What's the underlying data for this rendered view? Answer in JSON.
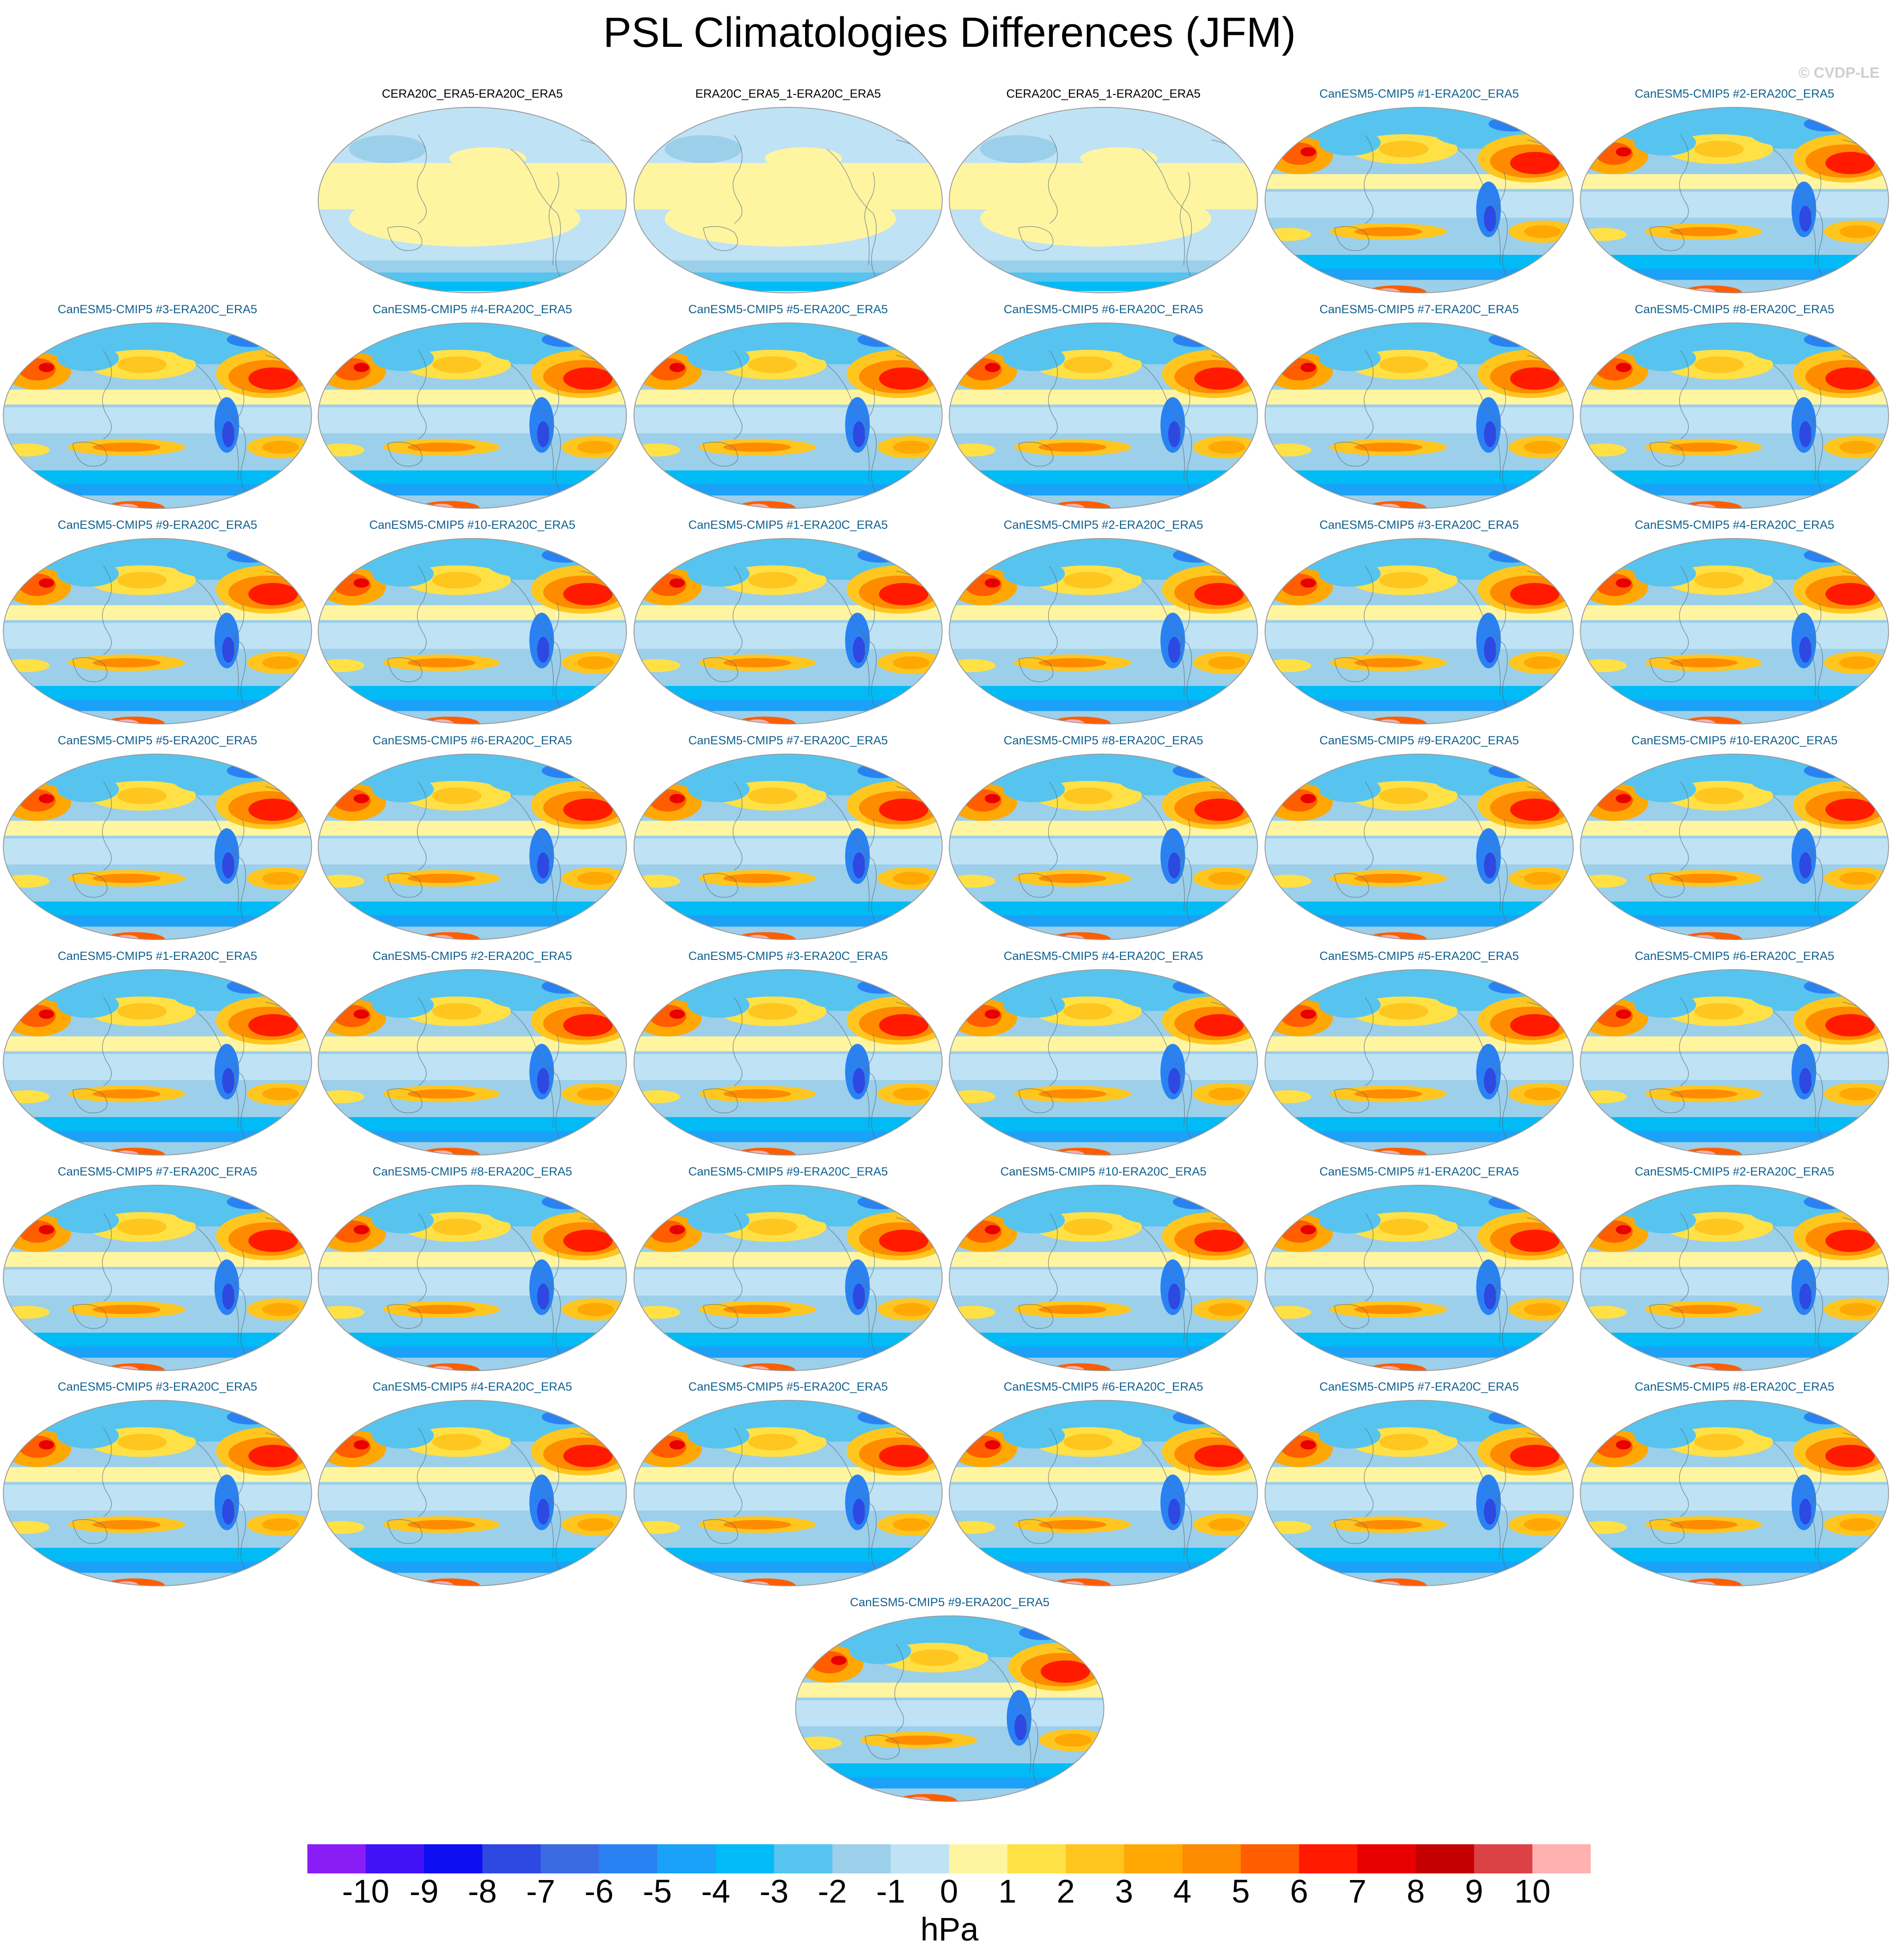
{
  "header": {
    "title": "PSL Climatologies Differences (JFM)",
    "copyright": "© CVDP-LE"
  },
  "chart_data": {
    "type": "heatmap",
    "title": "PSL Climatologies Differences (JFM)",
    "units": "hPa",
    "projection": "global map (Robinson-like ellipse)",
    "colorbar": {
      "labels": [
        "-10",
        "-9",
        "-8",
        "-7",
        "-6",
        "-5",
        "-4",
        "-3",
        "-2",
        "-1",
        "0",
        "1",
        "2",
        "3",
        "4",
        "5",
        "6",
        "7",
        "8",
        "9",
        "10"
      ],
      "colors": [
        "#8a1df5",
        "#4112f5",
        "#0e0ef2",
        "#2e48e2",
        "#3a6be3",
        "#2a82f2",
        "#1ba1f7",
        "#00bbf5",
        "#57c4ef",
        "#9ccfea",
        "#bfe2f5",
        "#fff5a1",
        "#ffe146",
        "#ffc61f",
        "#ffa803",
        "#ff8b00",
        "#ff5d00",
        "#ff1a00",
        "#e80000",
        "#c40000",
        "#dc4245",
        "#ffb0b0"
      ]
    },
    "panels": [
      {
        "label": "CERA20C_ERA5-ERA20C_ERA5",
        "kind": "obs"
      },
      {
        "label": "ERA20C_ERA5_1-ERA20C_ERA5",
        "kind": "obs"
      },
      {
        "label": "CERA20C_ERA5_1-ERA20C_ERA5",
        "kind": "obs"
      },
      {
        "label": "CanESM5-CMIP5 #1-ERA20C_ERA5",
        "kind": "model"
      },
      {
        "label": "CanESM5-CMIP5 #2-ERA20C_ERA5",
        "kind": "model"
      },
      {
        "label": "CanESM5-CMIP5 #3-ERA20C_ERA5",
        "kind": "model"
      },
      {
        "label": "CanESM5-CMIP5 #4-ERA20C_ERA5",
        "kind": "model"
      },
      {
        "label": "CanESM5-CMIP5 #5-ERA20C_ERA5",
        "kind": "model"
      },
      {
        "label": "CanESM5-CMIP5 #6-ERA20C_ERA5",
        "kind": "model"
      },
      {
        "label": "CanESM5-CMIP5 #7-ERA20C_ERA5",
        "kind": "model"
      },
      {
        "label": "CanESM5-CMIP5 #8-ERA20C_ERA5",
        "kind": "model"
      },
      {
        "label": "CanESM5-CMIP5 #9-ERA20C_ERA5",
        "kind": "model"
      },
      {
        "label": "CanESM5-CMIP5 #10-ERA20C_ERA5",
        "kind": "model"
      },
      {
        "label": "CanESM5-CMIP5 #1-ERA20C_ERA5",
        "kind": "model"
      },
      {
        "label": "CanESM5-CMIP5 #2-ERA20C_ERA5",
        "kind": "model"
      },
      {
        "label": "CanESM5-CMIP5 #3-ERA20C_ERA5",
        "kind": "model"
      },
      {
        "label": "CanESM5-CMIP5 #4-ERA20C_ERA5",
        "kind": "model"
      },
      {
        "label": "CanESM5-CMIP5 #5-ERA20C_ERA5",
        "kind": "model"
      },
      {
        "label": "CanESM5-CMIP5 #6-ERA20C_ERA5",
        "kind": "model"
      },
      {
        "label": "CanESM5-CMIP5 #7-ERA20C_ERA5",
        "kind": "model"
      },
      {
        "label": "CanESM5-CMIP5 #8-ERA20C_ERA5",
        "kind": "model"
      },
      {
        "label": "CanESM5-CMIP5 #9-ERA20C_ERA5",
        "kind": "model"
      },
      {
        "label": "CanESM5-CMIP5 #10-ERA20C_ERA5",
        "kind": "model"
      },
      {
        "label": "CanESM5-CMIP5 #1-ERA20C_ERA5",
        "kind": "model"
      },
      {
        "label": "CanESM5-CMIP5 #2-ERA20C_ERA5",
        "kind": "model"
      },
      {
        "label": "CanESM5-CMIP5 #3-ERA20C_ERA5",
        "kind": "model"
      },
      {
        "label": "CanESM5-CMIP5 #4-ERA20C_ERA5",
        "kind": "model"
      },
      {
        "label": "CanESM5-CMIP5 #5-ERA20C_ERA5",
        "kind": "model"
      },
      {
        "label": "CanESM5-CMIP5 #6-ERA20C_ERA5",
        "kind": "model"
      },
      {
        "label": "CanESM5-CMIP5 #7-ERA20C_ERA5",
        "kind": "model"
      },
      {
        "label": "CanESM5-CMIP5 #8-ERA20C_ERA5",
        "kind": "model"
      },
      {
        "label": "CanESM5-CMIP5 #9-ERA20C_ERA5",
        "kind": "model"
      },
      {
        "label": "CanESM5-CMIP5 #10-ERA20C_ERA5",
        "kind": "model"
      },
      {
        "label": "CanESM5-CMIP5 #1-ERA20C_ERA5",
        "kind": "model"
      },
      {
        "label": "CanESM5-CMIP5 #2-ERA20C_ERA5",
        "kind": "model"
      },
      {
        "label": "CanESM5-CMIP5 #3-ERA20C_ERA5",
        "kind": "model"
      },
      {
        "label": "CanESM5-CMIP5 #4-ERA20C_ERA5",
        "kind": "model"
      },
      {
        "label": "CanESM5-CMIP5 #5-ERA20C_ERA5",
        "kind": "model"
      },
      {
        "label": "CanESM5-CMIP5 #6-ERA20C_ERA5",
        "kind": "model"
      },
      {
        "label": "CanESM5-CMIP5 #7-ERA20C_ERA5",
        "kind": "model"
      },
      {
        "label": "CanESM5-CMIP5 #8-ERA20C_ERA5",
        "kind": "model"
      },
      {
        "label": "CanESM5-CMIP5 #9-ERA20C_ERA5",
        "kind": "model"
      }
    ]
  }
}
